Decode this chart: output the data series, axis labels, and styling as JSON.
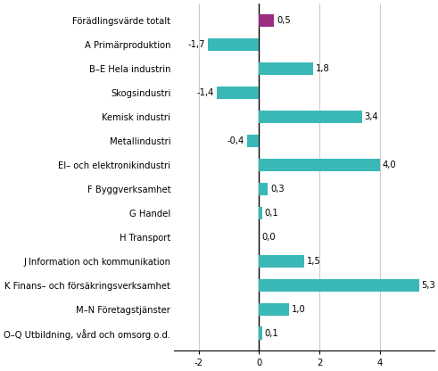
{
  "categories": [
    "Förädlingsvärde totalt",
    "A Primärproduktion",
    "B–E Hela industrin",
    "Skogsindustri",
    "Kemisk industri",
    "Metallindustri",
    "El– och elektronikindustri",
    "F Byggverksamhet",
    "G Handel",
    "H Transport",
    "J Information och kommunikation",
    "K Finans– och försäkringsverksamhet",
    "M–N Företagstjänster",
    "O–Q Utbildning, vård och omsorg o.d."
  ],
  "values": [
    0.5,
    -1.7,
    1.8,
    -1.4,
    3.4,
    -0.4,
    4.0,
    0.3,
    0.1,
    0.0,
    1.5,
    5.3,
    1.0,
    0.1
  ],
  "bar_colors": [
    "#9b2d82",
    "#3ab8b8",
    "#3ab8b8",
    "#3ab8b8",
    "#3ab8b8",
    "#3ab8b8",
    "#3ab8b8",
    "#3ab8b8",
    "#3ab8b8",
    "#3ab8b8",
    "#3ab8b8",
    "#3ab8b8",
    "#3ab8b8",
    "#3ab8b8"
  ],
  "xlim": [
    -2.8,
    5.8
  ],
  "xticks": [
    -2,
    0,
    2,
    4
  ],
  "label_fontsize": 7.2,
  "value_fontsize": 7.2,
  "bar_height": 0.55,
  "background_color": "#ffffff",
  "grid_color": "#cccccc",
  "fig_width": 4.91,
  "fig_height": 4.16,
  "dpi": 100
}
